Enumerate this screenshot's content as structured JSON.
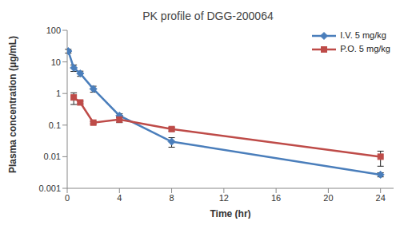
{
  "chart_data": {
    "type": "line",
    "title": "PK profile of DGG-200064",
    "x_label": "Time (hr)",
    "y_label": "Plasma concentration (μg/mL)",
    "xlim": [
      0,
      25
    ],
    "xticks": [
      0,
      4,
      8,
      12,
      16,
      20,
      24
    ],
    "ylim": [
      0.001,
      100
    ],
    "yticks": [
      0.001,
      0.01,
      0.1,
      1,
      10,
      100
    ],
    "log": "y",
    "grid": false,
    "legend": "upper right",
    "series": [
      {
        "name": "I.V. 5 mg/kg",
        "color": "#4a7ebb",
        "marker": "diamond",
        "x": [
          0.083,
          0.5,
          1,
          2,
          4,
          8,
          24
        ],
        "values": [
          22,
          6.5,
          4.3,
          1.4,
          0.2,
          0.03,
          0.0027
        ],
        "errors": [
          3,
          1.5,
          0.8,
          0.3,
          0.03,
          0.01,
          0.0004
        ]
      },
      {
        "name": "P.O. 5 mg/kg",
        "color": "#be4b48",
        "marker": "square",
        "x": [
          0.5,
          1,
          2,
          4,
          8,
          24
        ],
        "values": [
          0.75,
          0.52,
          0.12,
          0.15,
          0.075,
          0.01
        ],
        "errors": [
          0.3,
          0.05,
          0.01,
          0.03,
          0.01,
          0.005
        ]
      }
    ]
  }
}
